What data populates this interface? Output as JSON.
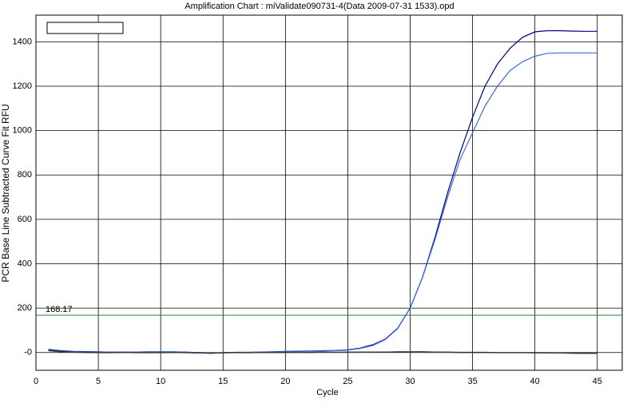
{
  "chart_data": {
    "type": "line",
    "title": "Amplification Chart : miValidate090731-4(Data 2009-07-31 1533).opd",
    "x_label": "Cycle",
    "y_label": "PCR Base Line Subtracted Curve Fit RFU",
    "x": [
      1,
      2,
      3,
      4,
      5,
      6,
      7,
      8,
      9,
      10,
      11,
      12,
      13,
      14,
      15,
      16,
      17,
      18,
      19,
      20,
      21,
      22,
      23,
      24,
      25,
      26,
      27,
      28,
      29,
      30,
      31,
      32,
      33,
      34,
      35,
      36,
      37,
      38,
      39,
      40,
      41,
      42,
      43,
      44,
      45
    ],
    "series": [
      {
        "color": "#000080",
        "values": [
          14,
          8,
          5,
          4,
          3,
          2,
          2,
          2,
          3,
          3,
          3,
          2,
          0,
          -2,
          -1,
          1,
          1,
          2,
          3,
          5,
          6,
          7,
          8,
          9,
          12,
          20,
          35,
          60,
          110,
          200,
          340,
          520,
          720,
          900,
          1060,
          1200,
          1300,
          1370,
          1420,
          1445,
          1450,
          1450,
          1448,
          1447,
          1447
        ]
      },
      {
        "color": "#3a6fd8",
        "values": [
          12,
          6,
          4,
          3,
          2,
          2,
          1,
          2,
          2,
          3,
          3,
          1,
          -1,
          -3,
          -2,
          0,
          1,
          1,
          2,
          4,
          5,
          6,
          7,
          8,
          11,
          18,
          32,
          58,
          108,
          200,
          340,
          510,
          700,
          870,
          990,
          1110,
          1200,
          1270,
          1310,
          1335,
          1348,
          1350,
          1350,
          1350,
          1350
        ]
      },
      {
        "color": "#000000",
        "values": [
          10,
          4,
          2,
          1,
          0,
          0,
          0,
          0,
          -1,
          0,
          0,
          0,
          -2,
          -3,
          -1,
          0,
          -1,
          0,
          0,
          1,
          1,
          1,
          2,
          1,
          2,
          2,
          2,
          2,
          3,
          3,
          3,
          2,
          2,
          1,
          1,
          1,
          0,
          0,
          0,
          -1,
          -1,
          -2,
          -3,
          -3,
          -4
        ]
      },
      {
        "color": "#404040",
        "values": [
          8,
          3,
          1,
          0,
          -1,
          -1,
          0,
          -1,
          -1,
          -1,
          0,
          -1,
          -2,
          -2,
          -1,
          -1,
          -1,
          0,
          0,
          0,
          1,
          0,
          1,
          1,
          1,
          1,
          2,
          2,
          2,
          2,
          1,
          1,
          1,
          0,
          0,
          0,
          -1,
          -1,
          -1,
          -2,
          -2,
          -2,
          -3,
          -4,
          -4
        ]
      }
    ],
    "threshold": 168.17,
    "threshold_color": "#2e7d32",
    "xlim": [
      0,
      47
    ],
    "xticks": [
      0,
      5,
      10,
      15,
      20,
      25,
      30,
      35,
      40,
      45
    ],
    "ylim": [
      -80,
      1520
    ],
    "yticks": [
      {
        "value": 0,
        "label": "-0"
      },
      200,
      400,
      600,
      800,
      1000,
      1200,
      1400
    ],
    "grid": true
  }
}
